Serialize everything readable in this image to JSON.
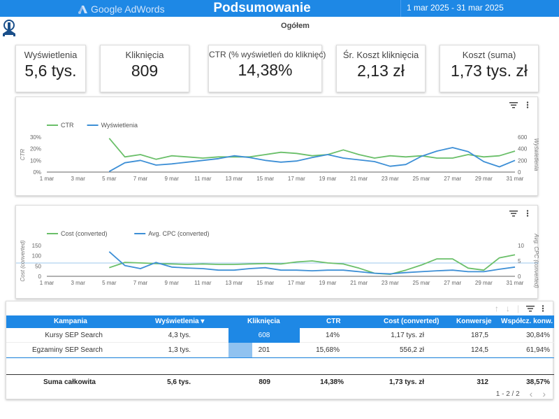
{
  "header": {
    "brand": "Google AdWords",
    "title": "Podsumowanie",
    "date_range": "1 mar 2025 - 31 mar 2025",
    "subtitle": "Ogółem",
    "brand_color": "#1e88e5"
  },
  "kpis": [
    {
      "label": "Wyświetlenia",
      "value": "5,6 tys."
    },
    {
      "label": "Kliknięcia",
      "value": "809"
    },
    {
      "label": "CTR (% wyświetleń do kliknięć)",
      "value": "14,38%"
    },
    {
      "label": "Śr. Koszt kliknięcia",
      "value": "2,13 zł"
    },
    {
      "label": "Koszt (suma)",
      "value": "1,73 tys. zł"
    }
  ],
  "chart_data": [
    {
      "type": "line",
      "x_ticks": [
        "1 mar",
        "3 mar",
        "5 mar",
        "7 mar",
        "9 mar",
        "11 mar",
        "13 mar",
        "15 mar",
        "17 mar",
        "19 mar",
        "21 mar",
        "23 mar",
        "25 mar",
        "27 mar",
        "29 mar",
        "31 mar"
      ],
      "x_days": [
        5,
        6,
        7,
        8,
        9,
        10,
        11,
        12,
        13,
        14,
        15,
        16,
        17,
        18,
        19,
        20,
        21,
        22,
        23,
        24,
        25,
        26,
        27,
        28,
        29,
        30,
        31
      ],
      "left_axis": {
        "label": "CTR",
        "ticks": [
          "0%",
          "10%",
          "20%",
          "30%"
        ],
        "range": [
          0,
          30
        ]
      },
      "right_axis": {
        "label": "Wyświetlenia",
        "ticks": [
          "0",
          "200",
          "400",
          "600"
        ],
        "range": [
          0,
          600
        ]
      },
      "legend_position": "top-left",
      "series": [
        {
          "name": "CTR",
          "axis": "left",
          "color": "#6abf69",
          "values": [
            29,
            13,
            15,
            11,
            14,
            13,
            12,
            13,
            13,
            13,
            15,
            17,
            16,
            14,
            15,
            19,
            15,
            12,
            14,
            13,
            14,
            12,
            12,
            15,
            13,
            14,
            18
          ]
        },
        {
          "name": "Wyświetlenia",
          "axis": "right",
          "color": "#3d8fd6",
          "values": [
            10,
            160,
            200,
            120,
            140,
            170,
            200,
            230,
            280,
            250,
            200,
            170,
            190,
            250,
            300,
            240,
            210,
            180,
            100,
            130,
            270,
            360,
            420,
            350,
            180,
            90,
            200
          ]
        }
      ]
    },
    {
      "type": "line",
      "x_ticks": [
        "1 mar",
        "3 mar",
        "5 mar",
        "7 mar",
        "9 mar",
        "11 mar",
        "13 mar",
        "15 mar",
        "17 mar",
        "19 mar",
        "21 mar",
        "23 mar",
        "25 mar",
        "27 mar",
        "29 mar",
        "31 mar"
      ],
      "x_days": [
        5,
        6,
        7,
        8,
        9,
        10,
        11,
        12,
        13,
        14,
        15,
        16,
        17,
        18,
        19,
        20,
        21,
        22,
        23,
        24,
        25,
        26,
        27,
        28,
        29,
        30,
        31
      ],
      "left_axis": {
        "label": "Cost (converted)",
        "ticks": [
          "0",
          "50",
          "100",
          "150"
        ],
        "range": [
          0,
          150
        ]
      },
      "right_axis": {
        "label": "Avg. CPC (converted)",
        "ticks": [
          "0",
          "5",
          "10"
        ],
        "range": [
          0,
          10
        ]
      },
      "legend_position": "top-left",
      "series": [
        {
          "name": "Cost (converted)",
          "axis": "left",
          "color": "#6abf69",
          "values": [
            42,
            68,
            65,
            62,
            60,
            58,
            60,
            58,
            58,
            60,
            62,
            60,
            70,
            75,
            65,
            60,
            40,
            15,
            10,
            30,
            55,
            85,
            85,
            40,
            30,
            90,
            105
          ]
        },
        {
          "name": "Avg. CPC (converted)",
          "axis": "right",
          "color": "#3d8fd6",
          "values": [
            8,
            3.5,
            2.5,
            4.5,
            3,
            2.7,
            2.5,
            2,
            2,
            2.5,
            2.8,
            2,
            2,
            1.8,
            2,
            2,
            1.5,
            1,
            0.8,
            1.2,
            1.5,
            1.8,
            2,
            1.5,
            1.5,
            2.3,
            3
          ]
        }
      ]
    }
  ],
  "table": {
    "columns": [
      "Kampania",
      "Wyświetlenia ▾",
      "Kliknięcia",
      "CTR",
      "Cost (converted)",
      "Konwersje",
      "Współcz. konw."
    ],
    "rows": [
      {
        "campaign": "Kursy SEP Search",
        "impressions": "4,3 tys.",
        "clicks": "608",
        "ctr": "14%",
        "cost": "1,17 tys. zł",
        "conversions": "187,5",
        "conv_rate": "30,84%",
        "clicks_fraction": 1.0
      },
      {
        "campaign": "Egzaminy SEP Search",
        "impressions": "1,3 tys.",
        "clicks": "201",
        "ctr": "15,68%",
        "cost": "556,2 zł",
        "conversions": "124,5",
        "conv_rate": "61,94%",
        "clicks_fraction": 0.33
      }
    ],
    "total": {
      "label": "Suma całkowita",
      "impressions": "5,6 tys.",
      "clicks": "809",
      "ctr": "14,38%",
      "cost": "1,73 tys. zł",
      "conversions": "312",
      "conv_rate": "38,57%"
    },
    "pagination": "1 - 2 / 2"
  }
}
